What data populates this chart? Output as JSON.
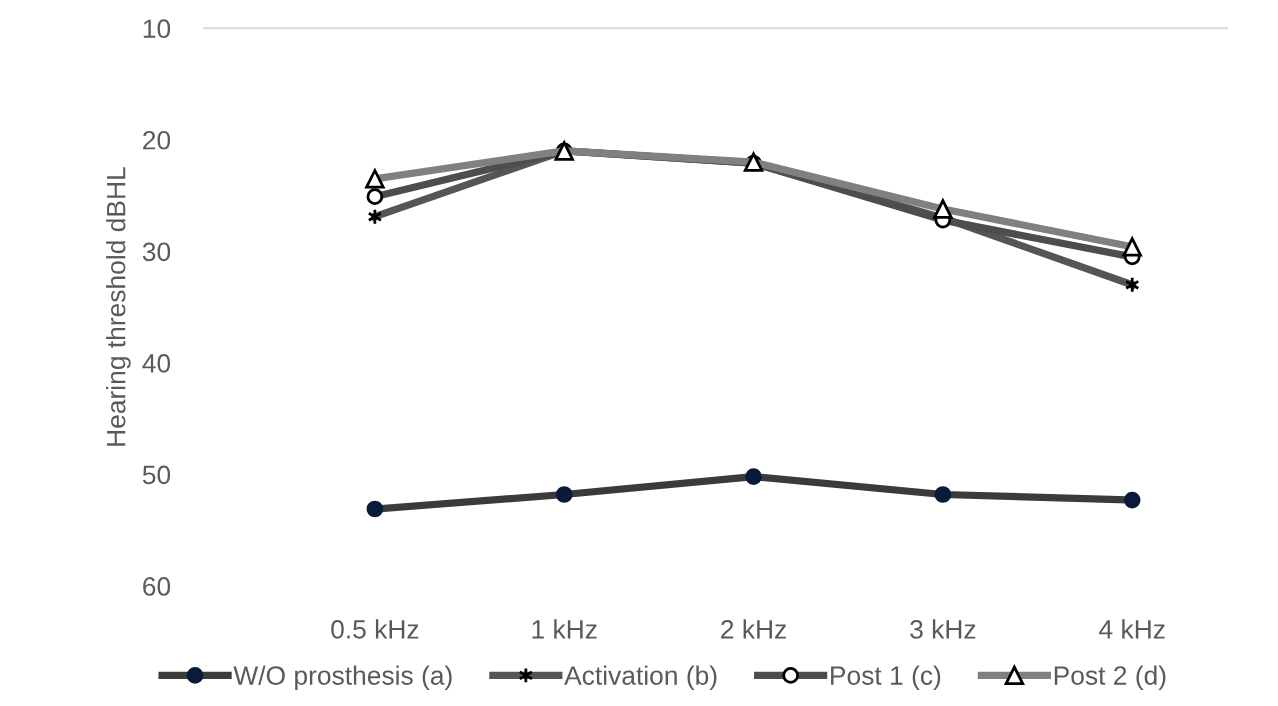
{
  "chart_data": {
    "type": "line",
    "ylabel": "Hearing threshold dBHL",
    "categories": [
      "0.5 kHz",
      "1 kHz",
      "2 kHz",
      "3 kHz",
      "4 kHz"
    ],
    "series": [
      {
        "name": "W/O prosthesis (a)",
        "color": "#3b3b3b",
        "marker": "circle",
        "values": [
          53.1,
          51.8,
          50.2,
          51.8,
          52.3
        ]
      },
      {
        "name": "Activation (b)",
        "color": "#555555",
        "marker": "cross",
        "values": [
          26.9,
          21,
          22.1,
          27,
          33
        ]
      },
      {
        "name": "Post 1 (c)",
        "color": "#4d4d4d",
        "marker": "circle",
        "values": [
          25.1,
          21,
          22.1,
          27.2,
          30.5
        ]
      },
      {
        "name": "Post 2 (d)",
        "color": "#808080",
        "marker": "triangle",
        "values": [
          23.5,
          21,
          22,
          26.2,
          29.6
        ]
      }
    ],
    "ylim": [
      60,
      10
    ],
    "yticks": [
      10,
      20,
      30,
      40,
      50,
      60
    ],
    "legend": "bottom",
    "line_style": "solid"
  }
}
